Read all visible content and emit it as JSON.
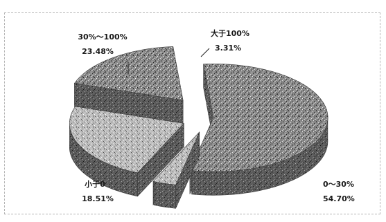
{
  "chart_data": {
    "type": "pie",
    "style": "3d-exploded",
    "title": "",
    "categories": [
      "0～30%",
      "大于100%",
      "30%～100%",
      "小于0"
    ],
    "values": [
      54.7,
      3.31,
      23.48,
      18.51
    ],
    "value_labels": [
      "54.70%",
      "3.31%",
      "23.48%",
      "18.51%"
    ],
    "fill": "speckled-gray",
    "legend": "none"
  }
}
